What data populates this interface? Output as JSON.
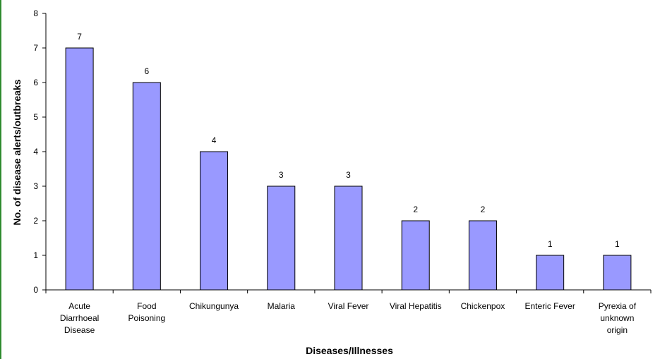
{
  "chart_data": {
    "type": "bar",
    "categories": [
      [
        "Acute",
        "Diarrhoeal",
        "Disease"
      ],
      [
        "Food",
        "Poisoning"
      ],
      [
        "Chikungunya"
      ],
      [
        "Malaria"
      ],
      [
        "Viral Fever"
      ],
      [
        "Viral Hepatitis"
      ],
      [
        "Chickenpox"
      ],
      [
        "Enteric Fever"
      ],
      [
        "Pyrexia of",
        "unknown",
        "origin"
      ]
    ],
    "values": [
      7,
      6,
      4,
      3,
      3,
      2,
      2,
      1,
      1
    ],
    "data_labels": [
      "7",
      "6",
      "4",
      "3",
      "3",
      "2",
      "2",
      "1",
      "1"
    ],
    "xlabel": "Diseases/Illnesses",
    "ylabel": "No. of disease alerts/outbreaks",
    "ylim": [
      0,
      8
    ],
    "yticks": [
      "0",
      "1",
      "2",
      "3",
      "4",
      "5",
      "6",
      "7",
      "8"
    ],
    "grid": false,
    "legend": "none",
    "bar_color": "#9999ff",
    "bar_edge_color": "#000000"
  }
}
